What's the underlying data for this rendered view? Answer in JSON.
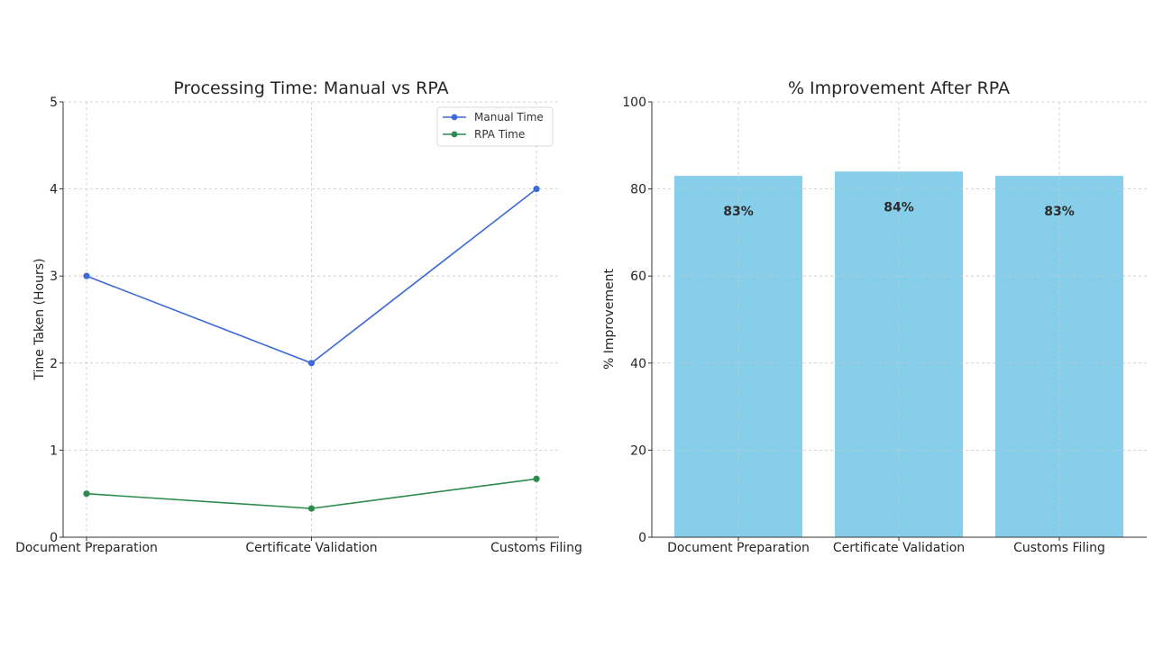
{
  "chart_data": [
    {
      "type": "line",
      "title": "Processing Time: Manual vs RPA",
      "xlabel": "",
      "ylabel": "Time Taken (Hours)",
      "categories": [
        "Document Preparation",
        "Certificate Validation",
        "Customs Filing"
      ],
      "ylim": [
        0,
        5
      ],
      "yticks": [
        0,
        1,
        2,
        3,
        4,
        5
      ],
      "grid": true,
      "legend_position": "top-right",
      "series": [
        {
          "name": "Manual Time",
          "values": [
            3,
            2,
            4
          ],
          "color": "#3d6ad6"
        },
        {
          "name": "RPA Time",
          "values": [
            0.5,
            0.33,
            0.67
          ],
          "color": "#2e8b4e"
        }
      ]
    },
    {
      "type": "bar",
      "title": "% Improvement After RPA",
      "xlabel": "",
      "ylabel": "% Improvement",
      "categories": [
        "Document Preparation",
        "Certificate Validation",
        "Customs Filing"
      ],
      "values": [
        83,
        84,
        83
      ],
      "data_labels": [
        "83%",
        "84%",
        "83%"
      ],
      "ylim": [
        0,
        100
      ],
      "yticks": [
        0,
        20,
        40,
        60,
        80,
        100
      ],
      "grid": true,
      "color": "#87ceeb"
    }
  ]
}
